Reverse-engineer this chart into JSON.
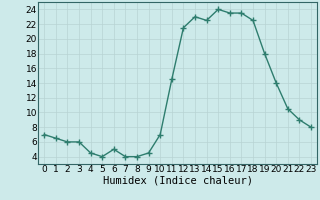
{
  "x": [
    0,
    1,
    2,
    3,
    4,
    5,
    6,
    7,
    8,
    9,
    10,
    11,
    12,
    13,
    14,
    15,
    16,
    17,
    18,
    19,
    20,
    21,
    22,
    23
  ],
  "y": [
    7,
    6.5,
    6,
    6,
    4.5,
    4,
    5,
    4,
    4,
    4.5,
    7,
    14.5,
    21.5,
    23,
    22.5,
    24,
    23.5,
    23.5,
    22.5,
    18,
    14,
    10.5,
    9,
    8
  ],
  "line_color": "#2e7d6e",
  "marker_color": "#2e7d6e",
  "bg_color": "#cdeaea",
  "grid_color": "#b8d4d4",
  "xlabel": "Humidex (Indice chaleur)",
  "xlim": [
    -0.5,
    23.5
  ],
  "ylim": [
    3,
    25
  ],
  "yticks": [
    4,
    6,
    8,
    10,
    12,
    14,
    16,
    18,
    20,
    22,
    24
  ],
  "xticks": [
    0,
    1,
    2,
    3,
    4,
    5,
    6,
    7,
    8,
    9,
    10,
    11,
    12,
    13,
    14,
    15,
    16,
    17,
    18,
    19,
    20,
    21,
    22,
    23
  ],
  "xlabel_fontsize": 7.5,
  "tick_fontsize": 6.5,
  "marker_size": 2.5,
  "line_width": 1.0
}
